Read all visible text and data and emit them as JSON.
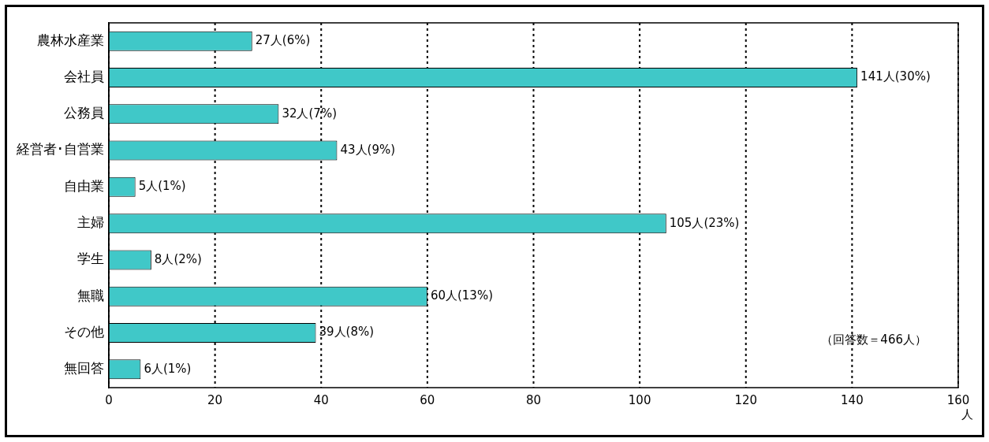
{
  "chart_data": {
    "type": "bar",
    "orientation": "horizontal",
    "categories": [
      "農林水産業",
      "会社員",
      "公務員",
      "経営者･自営業",
      "自由業",
      "主婦",
      "学生",
      "無職",
      "その他",
      "無回答"
    ],
    "values": [
      27,
      141,
      32,
      43,
      5,
      105,
      8,
      60,
      39,
      6
    ],
    "value_labels": [
      "27人(6%)",
      "141人(30%)",
      "32人(7%)",
      "43人(9%)",
      "5人(1%)",
      "105人(23%)",
      "8人(2%)",
      "60人(13%)",
      "39人(8%)",
      "6人(1%)"
    ],
    "color": "#40c8c8",
    "xlim": [
      0,
      160
    ],
    "xticks": [
      0,
      20,
      40,
      60,
      80,
      100,
      120,
      140,
      160
    ],
    "xlabel": "人",
    "grid": "x",
    "line_style": "dotted",
    "legend": false,
    "annotations": [
      "（回答数＝466人）"
    ]
  }
}
